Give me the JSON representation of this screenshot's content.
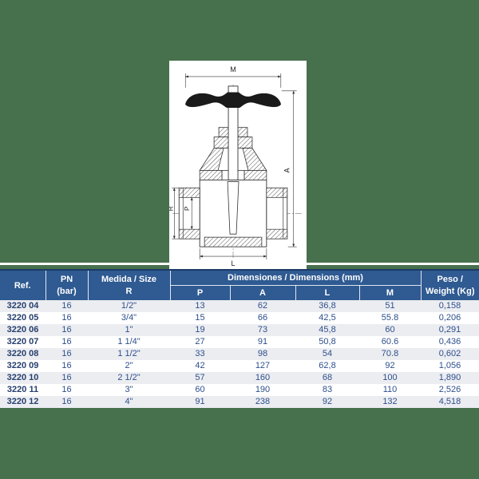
{
  "drawing": {
    "labels": {
      "m": "M",
      "a": "A",
      "r": "R",
      "p": "P",
      "l": "L"
    }
  },
  "table": {
    "header": {
      "ref": "Ref.",
      "pn_line1": "PN",
      "pn_line2": "(bar)",
      "medida_line1": "Medida / Size",
      "medida_line2": "R",
      "dims_group": "Dimensiones / Dimensions (mm)",
      "dim_cols": [
        "P",
        "A",
        "L",
        "M"
      ],
      "peso_line1": "Peso /",
      "peso_line2": "Weight (Kg)"
    },
    "rows": [
      {
        "ref": "3220 04",
        "cells": [
          "16",
          "1/2\"",
          "13",
          "62",
          "36,8",
          "51",
          "0,158"
        ]
      },
      {
        "ref": "3220 05",
        "cells": [
          "16",
          "3/4\"",
          "15",
          "66",
          "42,5",
          "55.8",
          "0,206"
        ]
      },
      {
        "ref": "3220 06",
        "cells": [
          "16",
          "1\"",
          "19",
          "73",
          "45,8",
          "60",
          "0,291"
        ]
      },
      {
        "ref": "3220 07",
        "cells": [
          "16",
          "1 1/4\"",
          "27",
          "91",
          "50,8",
          "60.6",
          "0,436"
        ]
      },
      {
        "ref": "3220 08",
        "cells": [
          "16",
          "1 1/2\"",
          "33",
          "98",
          "54",
          "70.8",
          "0,602"
        ]
      },
      {
        "ref": "3220 09",
        "cells": [
          "16",
          "2\"",
          "42",
          "127",
          "62,8",
          "92",
          "1,056"
        ]
      },
      {
        "ref": "3220 10",
        "cells": [
          "16",
          "2 1/2\"",
          "57",
          "160",
          "68",
          "100",
          "1,890"
        ]
      },
      {
        "ref": "3220 11",
        "cells": [
          "16",
          "3\"",
          "60",
          "190",
          "83",
          "110",
          "2,526"
        ]
      },
      {
        "ref": "3220 12",
        "cells": [
          "16",
          "4\"",
          "91",
          "238",
          "92",
          "132",
          "4,518"
        ]
      }
    ]
  },
  "colors": {
    "background_green": "#47704d",
    "header_blue": "#2f5a92",
    "header_border_navy": "#1c3a66",
    "row_alt_gray": "#ecedf1",
    "data_text_blue": "#2d4f8c"
  }
}
